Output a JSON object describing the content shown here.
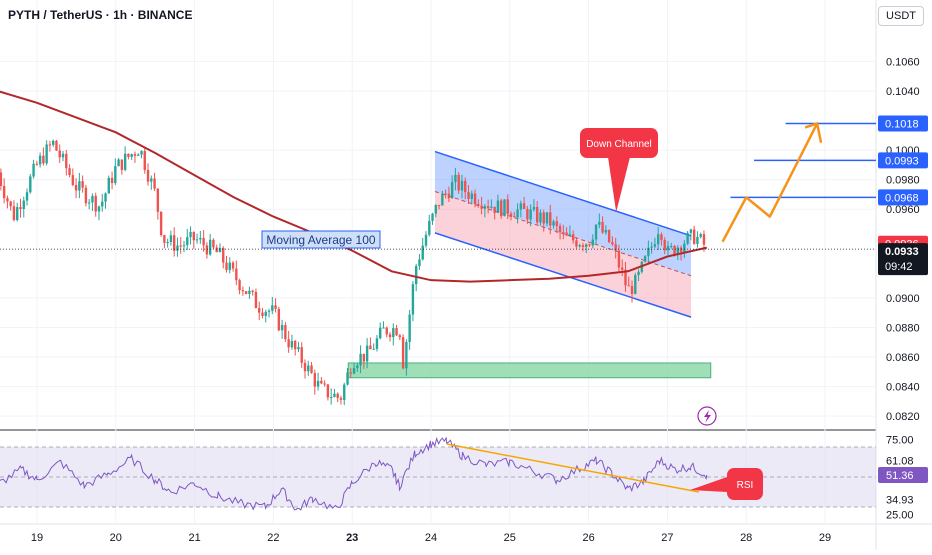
{
  "header": {
    "title": "PYTH / TetherUS · 1h · BINANCE",
    "currency": "USDT"
  },
  "annotations": {
    "moving_average_label": "Moving Average 100",
    "channel_label": "Down Channel",
    "rsi_label": "RSI"
  },
  "colors": {
    "bull": "#26a69a",
    "bear": "#ef5350",
    "ma": "#b2282a",
    "channel": "#2962ff",
    "zone": "#7fd4a0",
    "projection": "#f7931a",
    "rsi_line": "#7e57c2",
    "rsi_band": "#d6d0ef",
    "trendline": "#f7a600",
    "accent_red": "#f23645"
  },
  "chart_data": [
    {
      "type": "candlestick",
      "x_axis": {
        "labels": [
          "19",
          "20",
          "21",
          "22",
          "23",
          "24",
          "25",
          "26",
          "27",
          "28",
          "29"
        ]
      },
      "y_axis": {
        "ticks": [
          "0.1060",
          "0.1040",
          "0.1000",
          "0.0980",
          "0.0960",
          "0.0900",
          "0.0880",
          "0.0860",
          "0.0840",
          "0.0820"
        ],
        "ylim": [
          0.0812,
          0.1088
        ]
      },
      "series": [
        {
          "kind": "price",
          "points": [
            [
              18.5,
              0.0985
            ],
            [
              18.7,
              0.0955
            ],
            [
              19.0,
              0.099
            ],
            [
              19.2,
              0.1005
            ],
            [
              19.5,
              0.0975
            ],
            [
              19.8,
              0.0962
            ],
            [
              20.0,
              0.0988
            ],
            [
              20.3,
              0.1002
            ],
            [
              20.5,
              0.097
            ],
            [
              20.6,
              0.094
            ],
            [
              20.8,
              0.0935
            ],
            [
              21.0,
              0.094
            ],
            [
              21.3,
              0.093
            ],
            [
              21.5,
              0.0915
            ],
            [
              21.8,
              0.0895
            ],
            [
              22.0,
              0.089
            ],
            [
              22.2,
              0.087
            ],
            [
              22.4,
              0.0855
            ],
            [
              22.6,
              0.0838
            ],
            [
              22.85,
              0.0832
            ],
            [
              23.0,
              0.0858
            ],
            [
              23.2,
              0.0862
            ],
            [
              23.4,
              0.0878
            ],
            [
              23.6,
              0.088
            ],
            [
              23.65,
              0.0855
            ],
            [
              23.8,
              0.092
            ],
            [
              23.95,
              0.0945
            ],
            [
              24.1,
              0.0965
            ],
            [
              24.3,
              0.0978
            ],
            [
              24.5,
              0.097
            ],
            [
              24.8,
              0.0962
            ],
            [
              25.2,
              0.0958
            ],
            [
              25.5,
              0.0952
            ],
            [
              25.7,
              0.094
            ],
            [
              26.0,
              0.0938
            ],
            [
              26.1,
              0.095
            ],
            [
              26.3,
              0.0935
            ],
            [
              26.5,
              0.0905
            ],
            [
              26.6,
              0.091
            ],
            [
              26.8,
              0.0935
            ],
            [
              26.9,
              0.095
            ],
            [
              27.0,
              0.093
            ],
            [
              27.2,
              0.0938
            ],
            [
              27.35,
              0.0942
            ],
            [
              27.5,
              0.0934
            ]
          ]
        },
        {
          "kind": "moving_average",
          "name": "Moving Average 100",
          "points": [
            [
              18.0,
              0.1044
            ],
            [
              18.5,
              0.104
            ],
            [
              19.0,
              0.1032
            ],
            [
              19.5,
              0.1022
            ],
            [
              20.0,
              0.1012
            ],
            [
              20.5,
              0.0998
            ],
            [
              21.0,
              0.0983
            ],
            [
              21.5,
              0.0968
            ],
            [
              22.0,
              0.0955
            ],
            [
              22.5,
              0.0944
            ],
            [
              23.0,
              0.0932
            ],
            [
              23.5,
              0.0918
            ],
            [
              24.0,
              0.0912
            ],
            [
              24.5,
              0.0911
            ],
            [
              25.0,
              0.0912
            ],
            [
              25.5,
              0.0913
            ],
            [
              26.0,
              0.0915
            ],
            [
              26.5,
              0.0918
            ],
            [
              27.0,
              0.0928
            ],
            [
              27.5,
              0.0934
            ]
          ]
        },
        {
          "kind": "projection",
          "points": [
            [
              27.7,
              0.0938
            ],
            [
              28.0,
              0.0968
            ],
            [
              28.3,
              0.0955
            ],
            [
              28.9,
              0.1018
            ],
            [
              28.95,
              0.1005
            ]
          ]
        }
      ],
      "price_levels": [
        {
          "label": "0.1018",
          "value": 0.1018,
          "x_from": 28.5
        },
        {
          "label": "0.0993",
          "value": 0.0993,
          "x_from": 28.1
        },
        {
          "label": "0.0968",
          "value": 0.0968,
          "x_from": 27.8
        }
      ],
      "current_price": {
        "label": "0.0933",
        "countdown": "09:42",
        "value": 0.0933
      },
      "ma_price_tag": {
        "label": "0.0936",
        "value": 0.0936
      },
      "channel": {
        "upper": [
          [
            24.05,
            0.0999
          ],
          [
            27.3,
            0.0942
          ]
        ],
        "lower": [
          [
            24.05,
            0.0944
          ],
          [
            27.3,
            0.0887
          ]
        ],
        "mid": [
          [
            24.05,
            0.0972
          ],
          [
            27.3,
            0.0915
          ]
        ]
      },
      "support_zone": {
        "x": [
          22.95,
          27.55
        ],
        "y": [
          0.0846,
          0.0856
        ]
      },
      "callouts": {
        "channel_pointer": [
          26.35,
          0.0958
        ]
      }
    },
    {
      "type": "line",
      "name": "RSI",
      "y_axis": {
        "ticks": [
          "75.00",
          "61.08",
          "51.36",
          "34.93",
          "25.00"
        ],
        "ylim": [
          20,
          80
        ]
      },
      "levels": {
        "upper": 70,
        "lower": 30
      },
      "current": 51.36,
      "trendline": [
        [
          24.2,
          72
        ],
        [
          27.4,
          40
        ]
      ],
      "points": [
        [
          18.5,
          45
        ],
        [
          18.8,
          55
        ],
        [
          19.0,
          48
        ],
        [
          19.3,
          60
        ],
        [
          19.6,
          44
        ],
        [
          19.9,
          52
        ],
        [
          20.2,
          62
        ],
        [
          20.5,
          48
        ],
        [
          20.7,
          40
        ],
        [
          21.0,
          46
        ],
        [
          21.3,
          37
        ],
        [
          21.6,
          32
        ],
        [
          21.9,
          30
        ],
        [
          22.1,
          42
        ],
        [
          22.3,
          28
        ],
        [
          22.5,
          36
        ],
        [
          22.8,
          28
        ],
        [
          23.0,
          46
        ],
        [
          23.3,
          60
        ],
        [
          23.5,
          55
        ],
        [
          23.6,
          44
        ],
        [
          23.8,
          66
        ],
        [
          24.0,
          72
        ],
        [
          24.2,
          74
        ],
        [
          24.4,
          64
        ],
        [
          24.7,
          58
        ],
        [
          25.0,
          60
        ],
        [
          25.3,
          54
        ],
        [
          25.6,
          48
        ],
        [
          25.9,
          56
        ],
        [
          26.1,
          61
        ],
        [
          26.3,
          52
        ],
        [
          26.5,
          42
        ],
        [
          26.7,
          47
        ],
        [
          26.9,
          61
        ],
        [
          27.1,
          55
        ],
        [
          27.3,
          57
        ],
        [
          27.5,
          51.36
        ]
      ]
    }
  ]
}
